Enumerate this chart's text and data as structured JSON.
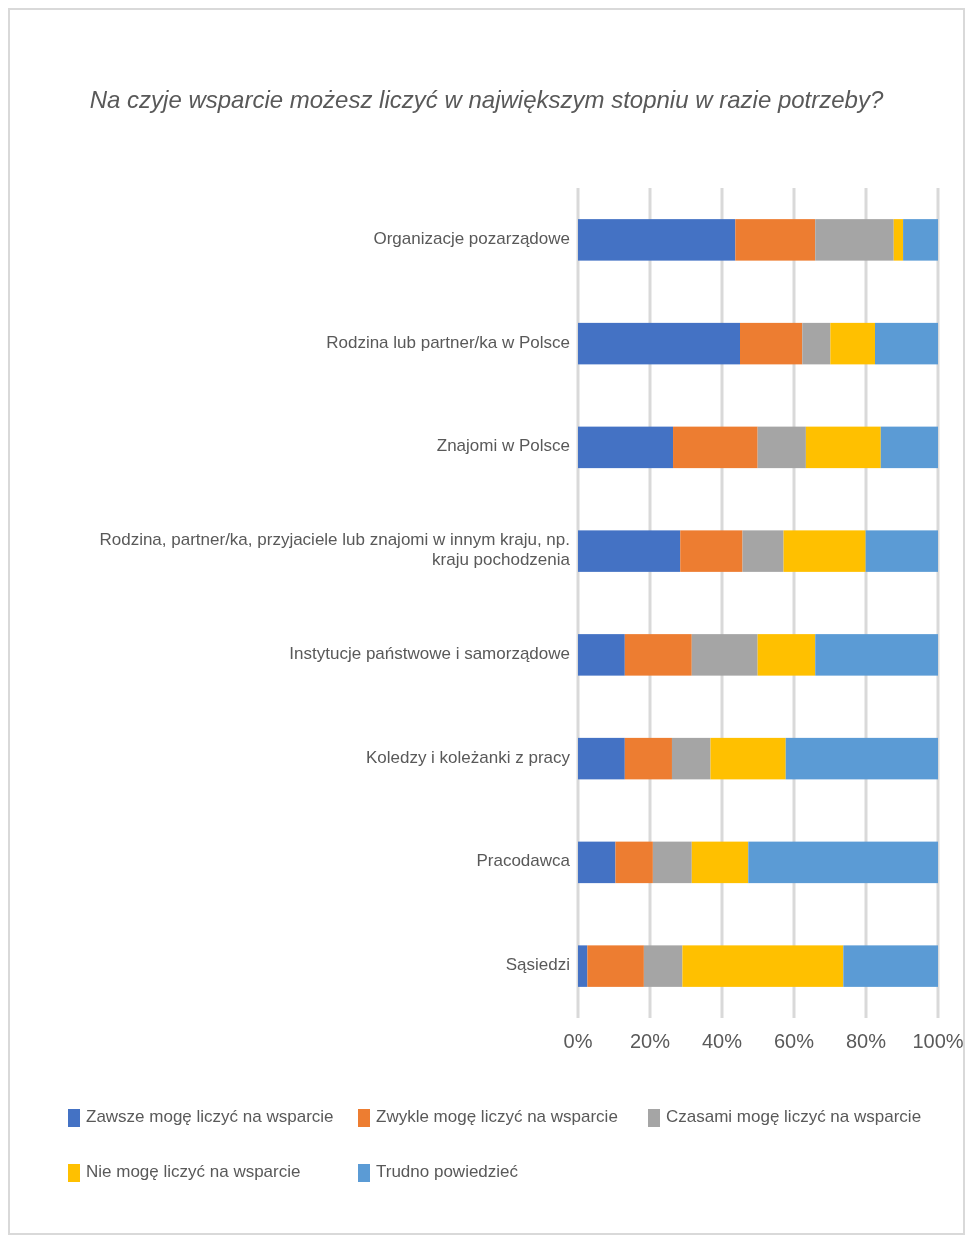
{
  "chart_data": {
    "type": "bar",
    "orientation": "horizontal",
    "stacked": true,
    "title": "Na czyje wsparcie możesz liczyć w największym stopniu w razie potrzeby?",
    "categories": [
      "Organizacje pozarządowe",
      "Rodzina lub partner/ka w Polsce",
      "Znajomi w Polsce",
      "Rodzina, partner/ka, przyjaciele lub znajomi w innym kraju, np. kraju pochodzenia",
      "Instytucje państwowe i samorządowe",
      "Koledzy i koleżanki z pracy",
      "Pracodawca",
      "Sąsiedzi"
    ],
    "series": [
      {
        "name": "Zawsze mogę liczyć na wsparcie",
        "color": "#4472c4",
        "values": [
          43.7,
          45.0,
          26.4,
          28.4,
          13.0,
          13.0,
          10.4,
          2.6
        ]
      },
      {
        "name": "Zwykle mogę liczyć na wsparcie",
        "color": "#ed7d31",
        "values": [
          22.2,
          17.3,
          23.5,
          17.3,
          18.6,
          13.1,
          10.4,
          15.7
        ]
      },
      {
        "name": "Czasami mogę liczyć na wsparcie",
        "color": "#a5a5a5",
        "values": [
          21.8,
          7.8,
          13.4,
          11.4,
          18.3,
          10.7,
          10.8,
          10.7
        ]
      },
      {
        "name": "Nie mogę liczyć na wsparcie",
        "color": "#ffc000",
        "values": [
          2.6,
          12.4,
          20.8,
          22.8,
          16.0,
          20.9,
          15.7,
          44.7
        ]
      },
      {
        "name": "Trudno powiedzieć",
        "color": "#5b9bd5",
        "values": [
          9.7,
          17.5,
          15.9,
          20.1,
          34.1,
          42.3,
          52.7,
          26.3
        ]
      }
    ],
    "xlim": [
      0,
      100
    ],
    "xticks": [
      {
        "value": 0,
        "label": "0%"
      },
      {
        "value": 20,
        "label": "20%"
      },
      {
        "value": 40,
        "label": "40%"
      },
      {
        "value": 60,
        "label": "60%"
      },
      {
        "value": 80,
        "label": "80%"
      },
      {
        "value": 100,
        "label": "100%"
      }
    ],
    "grid": "x",
    "legend": "bottom"
  }
}
